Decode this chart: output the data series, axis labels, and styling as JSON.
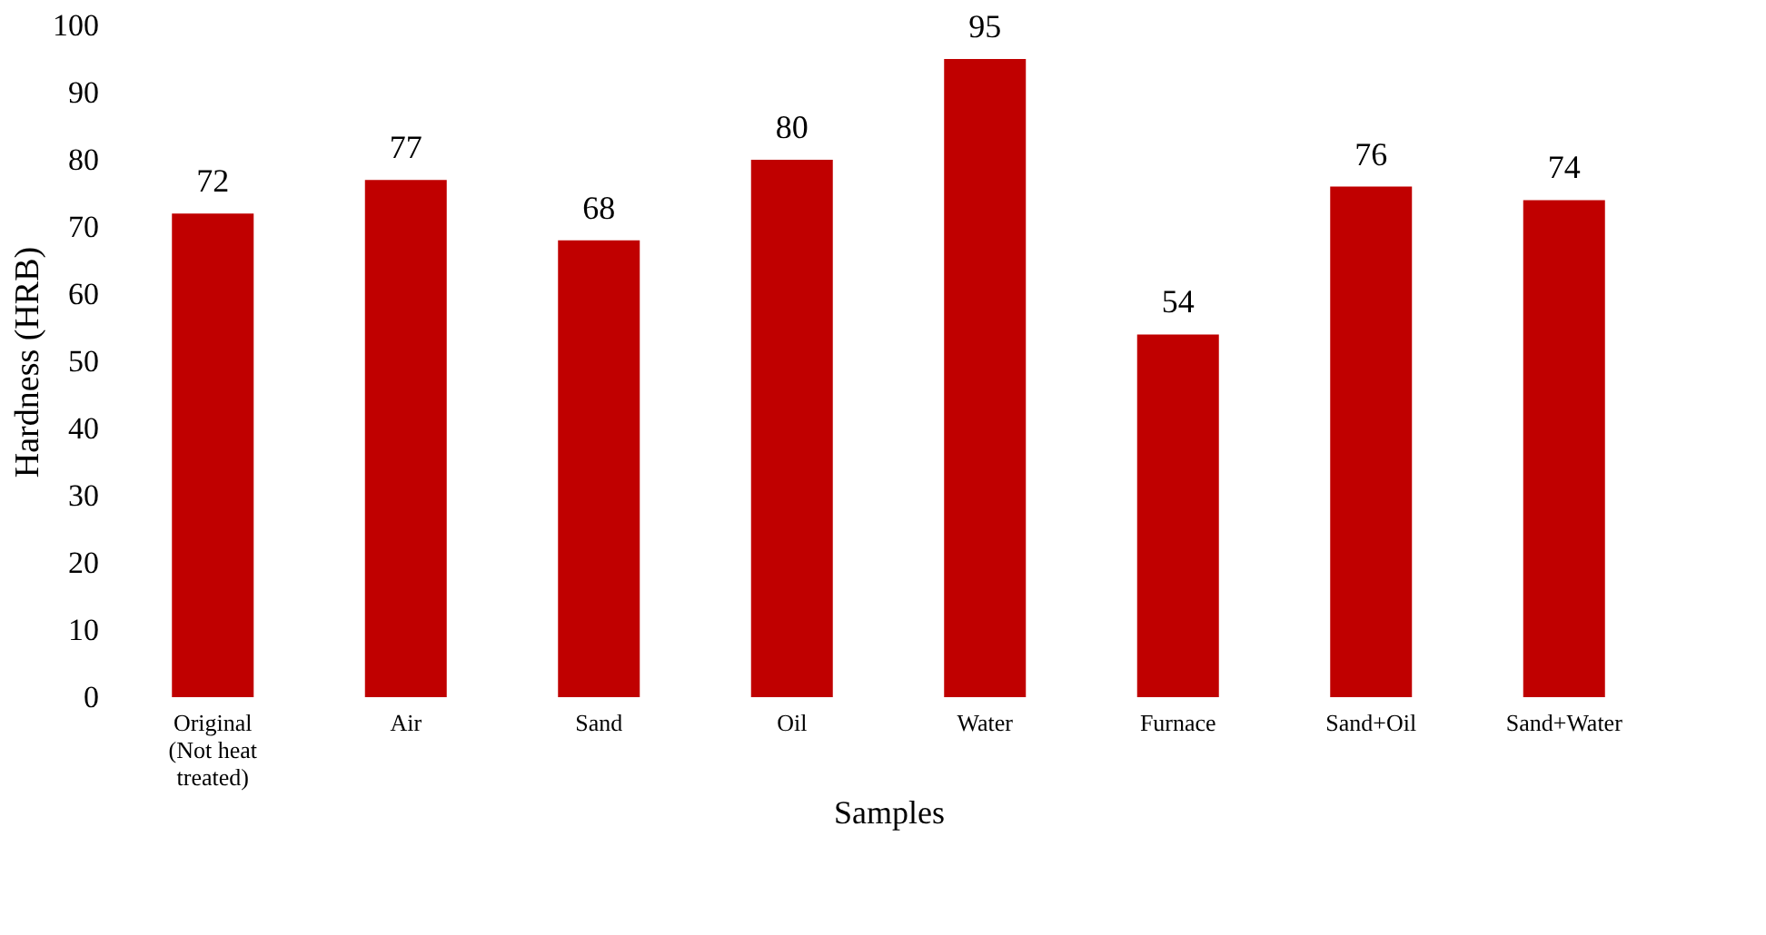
{
  "chart_data": {
    "type": "bar",
    "xlabel": "Samples",
    "ylabel": "Hardness (HRB)",
    "categories": [
      "Original\n(Not heat\ntreated)",
      "Air",
      "Sand",
      "Oil",
      "Water",
      "Furnace",
      "Sand+Oil",
      "Sand+Water"
    ],
    "values": [
      72,
      77,
      68,
      80,
      95,
      54,
      76,
      74
    ],
    "color": "#c00000",
    "ylim": [
      0,
      100
    ],
    "yticks": [
      0,
      10,
      20,
      30,
      40,
      50,
      60,
      70,
      80,
      90,
      100
    ],
    "data_labels": true,
    "grid": false,
    "legend": false
  }
}
